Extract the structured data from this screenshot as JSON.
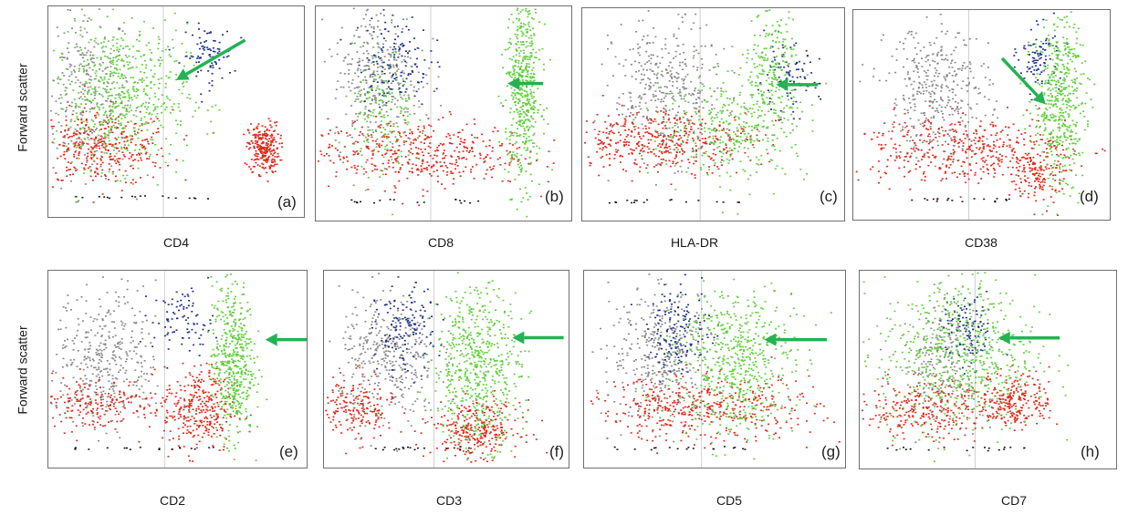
{
  "ylabel": "Forward scatter",
  "colors": {
    "gray": "#8a8a8a",
    "blue": "#1f2f8f",
    "green": "#5fcf3a",
    "red": "#e02a1a",
    "black": "#111111",
    "arrow": "#22b352"
  },
  "chart_data": [
    {
      "type": "scatter",
      "panel": "(a)",
      "xlabel": "CD4",
      "clusters": [
        {
          "color": "gray",
          "cx": 0.14,
          "cy": 0.6,
          "sx": 0.09,
          "sy": 0.2,
          "n": 320
        },
        {
          "color": "blue",
          "cx": 0.62,
          "cy": 0.77,
          "sx": 0.05,
          "sy": 0.07,
          "n": 90
        },
        {
          "color": "green",
          "cx": 0.28,
          "cy": 0.58,
          "sx": 0.13,
          "sy": 0.17,
          "n": 600
        },
        {
          "color": "red",
          "cx": 0.2,
          "cy": 0.33,
          "sx": 0.14,
          "sy": 0.09,
          "n": 380
        },
        {
          "color": "red",
          "cx": 0.84,
          "cy": 0.33,
          "sx": 0.03,
          "sy": 0.06,
          "n": 260
        }
      ],
      "arrow": {
        "from": [
          0.77,
          0.84
        ],
        "to": [
          0.5,
          0.65
        ]
      }
    },
    {
      "type": "scatter",
      "panel": "(b)",
      "xlabel": "CD8",
      "clusters": [
        {
          "color": "gray",
          "cx": 0.24,
          "cy": 0.68,
          "sx": 0.09,
          "sy": 0.17,
          "n": 340
        },
        {
          "color": "blue",
          "cx": 0.3,
          "cy": 0.75,
          "sx": 0.07,
          "sy": 0.11,
          "n": 140
        },
        {
          "color": "green",
          "cx": 0.26,
          "cy": 0.5,
          "sx": 0.06,
          "sy": 0.15,
          "n": 160
        },
        {
          "color": "green",
          "cx": 0.81,
          "cy": 0.62,
          "sx": 0.035,
          "sy": 0.22,
          "n": 520
        },
        {
          "color": "red",
          "cx": 0.38,
          "cy": 0.32,
          "sx": 0.22,
          "sy": 0.08,
          "n": 450
        }
      ],
      "arrow": {
        "from": [
          0.89,
          0.64
        ],
        "to": [
          0.75,
          0.64
        ]
      }
    },
    {
      "type": "scatter",
      "panel": "(c)",
      "xlabel": "HLA-DR",
      "clusters": [
        {
          "color": "gray",
          "cx": 0.32,
          "cy": 0.62,
          "sx": 0.1,
          "sy": 0.16,
          "n": 380
        },
        {
          "color": "blue",
          "cx": 0.78,
          "cy": 0.67,
          "sx": 0.06,
          "sy": 0.08,
          "n": 90
        },
        {
          "color": "green",
          "cx": 0.58,
          "cy": 0.44,
          "sx": 0.14,
          "sy": 0.12,
          "n": 330
        },
        {
          "color": "green",
          "cx": 0.72,
          "cy": 0.7,
          "sx": 0.05,
          "sy": 0.14,
          "n": 220
        },
        {
          "color": "red",
          "cx": 0.3,
          "cy": 0.38,
          "sx": 0.18,
          "sy": 0.07,
          "n": 430
        }
      ],
      "arrow": {
        "from": [
          0.9,
          0.64
        ],
        "to": [
          0.74,
          0.64
        ]
      }
    },
    {
      "type": "scatter",
      "panel": "(d)",
      "xlabel": "CD38",
      "clusters": [
        {
          "color": "gray",
          "cx": 0.33,
          "cy": 0.62,
          "sx": 0.1,
          "sy": 0.16,
          "n": 380
        },
        {
          "color": "blue",
          "cx": 0.72,
          "cy": 0.77,
          "sx": 0.04,
          "sy": 0.08,
          "n": 100
        },
        {
          "color": "green",
          "cx": 0.8,
          "cy": 0.58,
          "sx": 0.05,
          "sy": 0.2,
          "n": 500
        },
        {
          "color": "red",
          "cx": 0.4,
          "cy": 0.34,
          "sx": 0.22,
          "sy": 0.08,
          "n": 420
        },
        {
          "color": "red",
          "cx": 0.72,
          "cy": 0.22,
          "sx": 0.05,
          "sy": 0.07,
          "n": 160
        }
      ],
      "arrow": {
        "from": [
          0.58,
          0.77
        ],
        "to": [
          0.75,
          0.55
        ]
      }
    },
    {
      "type": "scatter",
      "panel": "(e)",
      "xlabel": "CD2",
      "clusters": [
        {
          "color": "gray",
          "cx": 0.22,
          "cy": 0.55,
          "sx": 0.1,
          "sy": 0.17,
          "n": 380
        },
        {
          "color": "blue",
          "cx": 0.52,
          "cy": 0.75,
          "sx": 0.06,
          "sy": 0.08,
          "n": 90
        },
        {
          "color": "green",
          "cx": 0.71,
          "cy": 0.55,
          "sx": 0.04,
          "sy": 0.2,
          "n": 500
        },
        {
          "color": "red",
          "cx": 0.58,
          "cy": 0.3,
          "sx": 0.07,
          "sy": 0.11,
          "n": 320
        },
        {
          "color": "red",
          "cx": 0.18,
          "cy": 0.33,
          "sx": 0.12,
          "sy": 0.07,
          "n": 200
        }
      ],
      "arrow": {
        "from": [
          1.05,
          0.65
        ],
        "to": [
          0.84,
          0.65
        ]
      }
    },
    {
      "type": "scatter",
      "panel": "(f)",
      "xlabel": "CD3",
      "clusters": [
        {
          "color": "gray",
          "cx": 0.26,
          "cy": 0.55,
          "sx": 0.1,
          "sy": 0.17,
          "n": 380
        },
        {
          "color": "blue",
          "cx": 0.33,
          "cy": 0.7,
          "sx": 0.06,
          "sy": 0.11,
          "n": 140
        },
        {
          "color": "green",
          "cx": 0.62,
          "cy": 0.52,
          "sx": 0.09,
          "sy": 0.2,
          "n": 600
        },
        {
          "color": "red",
          "cx": 0.62,
          "cy": 0.2,
          "sx": 0.09,
          "sy": 0.07,
          "n": 300
        },
        {
          "color": "red",
          "cx": 0.12,
          "cy": 0.3,
          "sx": 0.08,
          "sy": 0.08,
          "n": 200
        }
      ],
      "arrow": {
        "from": [
          0.98,
          0.66
        ],
        "to": [
          0.77,
          0.66
        ]
      }
    },
    {
      "type": "scatter",
      "panel": "(g)",
      "xlabel": "CD5",
      "clusters": [
        {
          "color": "gray",
          "cx": 0.3,
          "cy": 0.58,
          "sx": 0.1,
          "sy": 0.17,
          "n": 380
        },
        {
          "color": "blue",
          "cx": 0.36,
          "cy": 0.7,
          "sx": 0.06,
          "sy": 0.11,
          "n": 150
        },
        {
          "color": "green",
          "cx": 0.58,
          "cy": 0.55,
          "sx": 0.11,
          "sy": 0.2,
          "n": 600
        },
        {
          "color": "red",
          "cx": 0.45,
          "cy": 0.3,
          "sx": 0.22,
          "sy": 0.08,
          "n": 450
        }
      ],
      "arrow": {
        "from": [
          0.93,
          0.65
        ],
        "to": [
          0.69,
          0.65
        ]
      }
    },
    {
      "type": "scatter",
      "panel": "(h)",
      "xlabel": "CD7",
      "clusters": [
        {
          "color": "gray",
          "cx": 0.32,
          "cy": 0.55,
          "sx": 0.08,
          "sy": 0.15,
          "n": 220
        },
        {
          "color": "blue",
          "cx": 0.42,
          "cy": 0.7,
          "sx": 0.05,
          "sy": 0.09,
          "n": 110
        },
        {
          "color": "green",
          "cx": 0.38,
          "cy": 0.58,
          "sx": 0.15,
          "sy": 0.2,
          "n": 650
        },
        {
          "color": "red",
          "cx": 0.24,
          "cy": 0.3,
          "sx": 0.13,
          "sy": 0.07,
          "n": 280
        },
        {
          "color": "red",
          "cx": 0.6,
          "cy": 0.35,
          "sx": 0.07,
          "sy": 0.07,
          "n": 250
        }
      ],
      "arrow": {
        "from": [
          0.78,
          0.66
        ],
        "to": [
          0.54,
          0.66
        ]
      }
    }
  ]
}
